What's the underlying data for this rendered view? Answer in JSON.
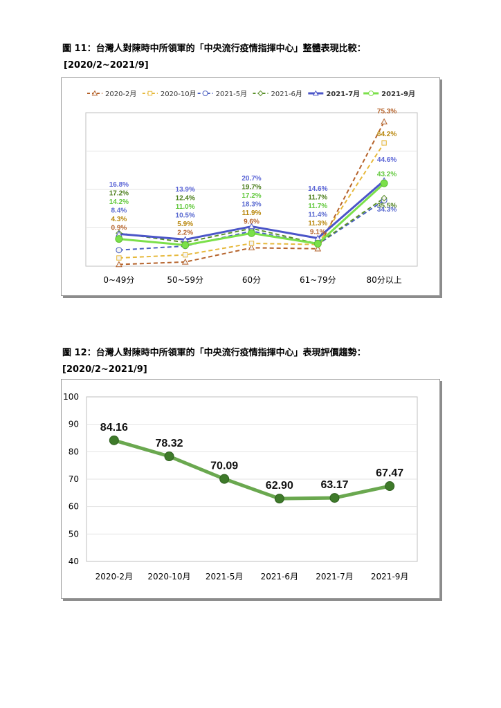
{
  "figure1": {
    "caption": "圖 11：台灣人對陳時中所領軍的「中央流行疫情指揮中心」整體表現比較：",
    "subcaption": "[2020/2~2021/9]"
  },
  "figure2": {
    "caption": "圖 12：台灣人對陳時中所領軍的「中央流行疫情指揮中心」表現評價趨勢：",
    "subcaption": "[2020/2~2021/9]"
  },
  "chart_data": [
    {
      "type": "line",
      "categories": [
        "0~49分",
        "50~59分",
        "60分",
        "61~79分",
        "80分以上"
      ],
      "ylim": [
        0,
        80
      ],
      "grid": true,
      "legend_position": "top",
      "series": [
        {
          "name": "2020-2月",
          "values": [
            0.9,
            2.2,
            9.6,
            9.1,
            75.3
          ],
          "labels": [
            "0.9%",
            "2.2%",
            "9.6%",
            "9.1%",
            "75.3%"
          ],
          "color": "#b5622a",
          "label_color": "#b5622a",
          "marker": "triangle",
          "dash": true
        },
        {
          "name": "2020-10月",
          "values": [
            4.3,
            5.9,
            11.9,
            11.3,
            64.2
          ],
          "labels": [
            "4.3%",
            "5.9%",
            "11.9%",
            "11.3%",
            "64.2%"
          ],
          "color": "#e6b83a",
          "label_color": "#b8860b",
          "marker": "square",
          "dash": true
        },
        {
          "name": "2021-5月",
          "values": [
            8.4,
            10.5,
            18.3,
            11.4,
            34.3
          ],
          "labels": [
            "8.4%",
            "10.5%",
            "18.3%",
            "11.4%",
            "34.3%"
          ],
          "color": "#4a5fc1",
          "label_color": "#5a6ad0",
          "marker": "circle",
          "dash": true
        },
        {
          "name": "2021-6月",
          "values": [
            17.2,
            12.4,
            19.7,
            11.7,
            35.5
          ],
          "labels": [
            "17.2%",
            "12.4%",
            "19.7%",
            "11.7%",
            "35.5%"
          ],
          "color": "#5a8f29",
          "label_color": "#4d7f1e",
          "marker": "diamond",
          "dash": true
        },
        {
          "name": "2021-7月",
          "values": [
            16.8,
            13.9,
            20.7,
            14.6,
            44.6
          ],
          "labels": [
            "16.8%",
            "13.9%",
            "20.7%",
            "14.6%",
            "44.6%"
          ],
          "color": "#4b55c8",
          "label_color": "#5a64d6",
          "marker": "triangle",
          "dash": false
        },
        {
          "name": "2021-9月",
          "values": [
            14.2,
            11.0,
            17.2,
            11.7,
            43.2
          ],
          "labels": [
            "14.2%",
            "11.0%",
            "17.2%",
            "11.7%",
            "43.2%"
          ],
          "color": "#7be04a",
          "label_color": "#63c93e",
          "marker": "circle",
          "dash": false
        }
      ]
    },
    {
      "type": "line",
      "categories": [
        "2020-2月",
        "2020-10月",
        "2021-5月",
        "2021-6月",
        "2021-7月",
        "2021-9月"
      ],
      "values": [
        84.16,
        78.32,
        70.09,
        62.9,
        63.17,
        67.47
      ],
      "labels": [
        "84.16",
        "78.32",
        "70.09",
        "62.90",
        "63.17",
        "67.47"
      ],
      "yticks": [
        "100",
        "90",
        "80",
        "70",
        "60",
        "50",
        "40"
      ],
      "ylim": [
        40,
        100
      ],
      "grid": true,
      "line_color": "#6aa84f",
      "marker_color": "#3e7a2a"
    }
  ]
}
